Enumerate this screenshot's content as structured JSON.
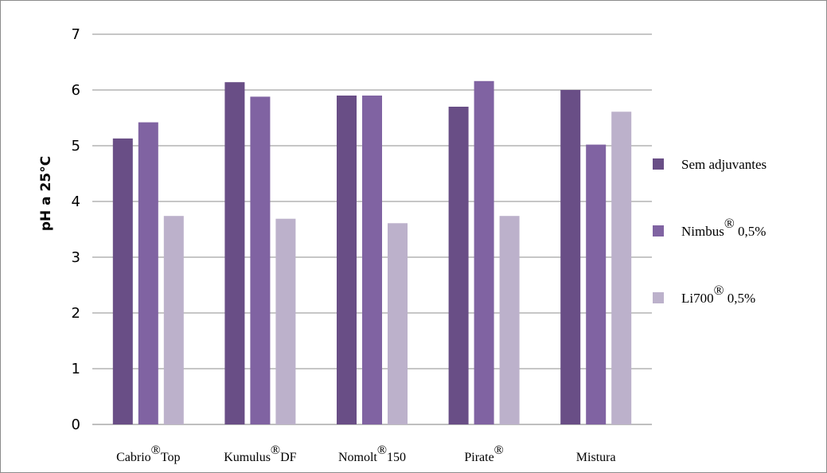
{
  "chart_data": {
    "type": "bar",
    "ylabel": "pH a 25°C",
    "ylim": [
      0,
      7
    ],
    "yticks": [
      "0",
      "1",
      "2",
      "3",
      "4",
      "5",
      "6",
      "7"
    ],
    "grid": true,
    "legend_position": "right",
    "categories": [
      {
        "base": "Cabrio",
        "mark": "®",
        "suffix": "Top"
      },
      {
        "base": "Kumulus",
        "mark": "®",
        "suffix": "DF"
      },
      {
        "base": "Nomolt",
        "mark": "®",
        "suffix": "150"
      },
      {
        "base": "Pirate",
        "mark": "®",
        "suffix": ""
      },
      {
        "base": "Mistura",
        "mark": "",
        "suffix": ""
      }
    ],
    "series": [
      {
        "name": {
          "base": "Sem adjuvantes",
          "mark": "",
          "suffix": ""
        },
        "color": "#694e86",
        "values": [
          5.13,
          6.14,
          5.9,
          5.7,
          6.0
        ]
      },
      {
        "name": {
          "base": "Nimbus",
          "mark": "®",
          "suffix": "0,5%"
        },
        "color": "#8063a2",
        "values": [
          5.42,
          5.88,
          5.9,
          6.16,
          5.02
        ]
      },
      {
        "name": {
          "base": "Li700",
          "mark": "®",
          "suffix": "0,5%"
        },
        "color": "#bcb1cb",
        "values": [
          3.74,
          3.69,
          3.61,
          3.74,
          5.61
        ]
      }
    ]
  }
}
